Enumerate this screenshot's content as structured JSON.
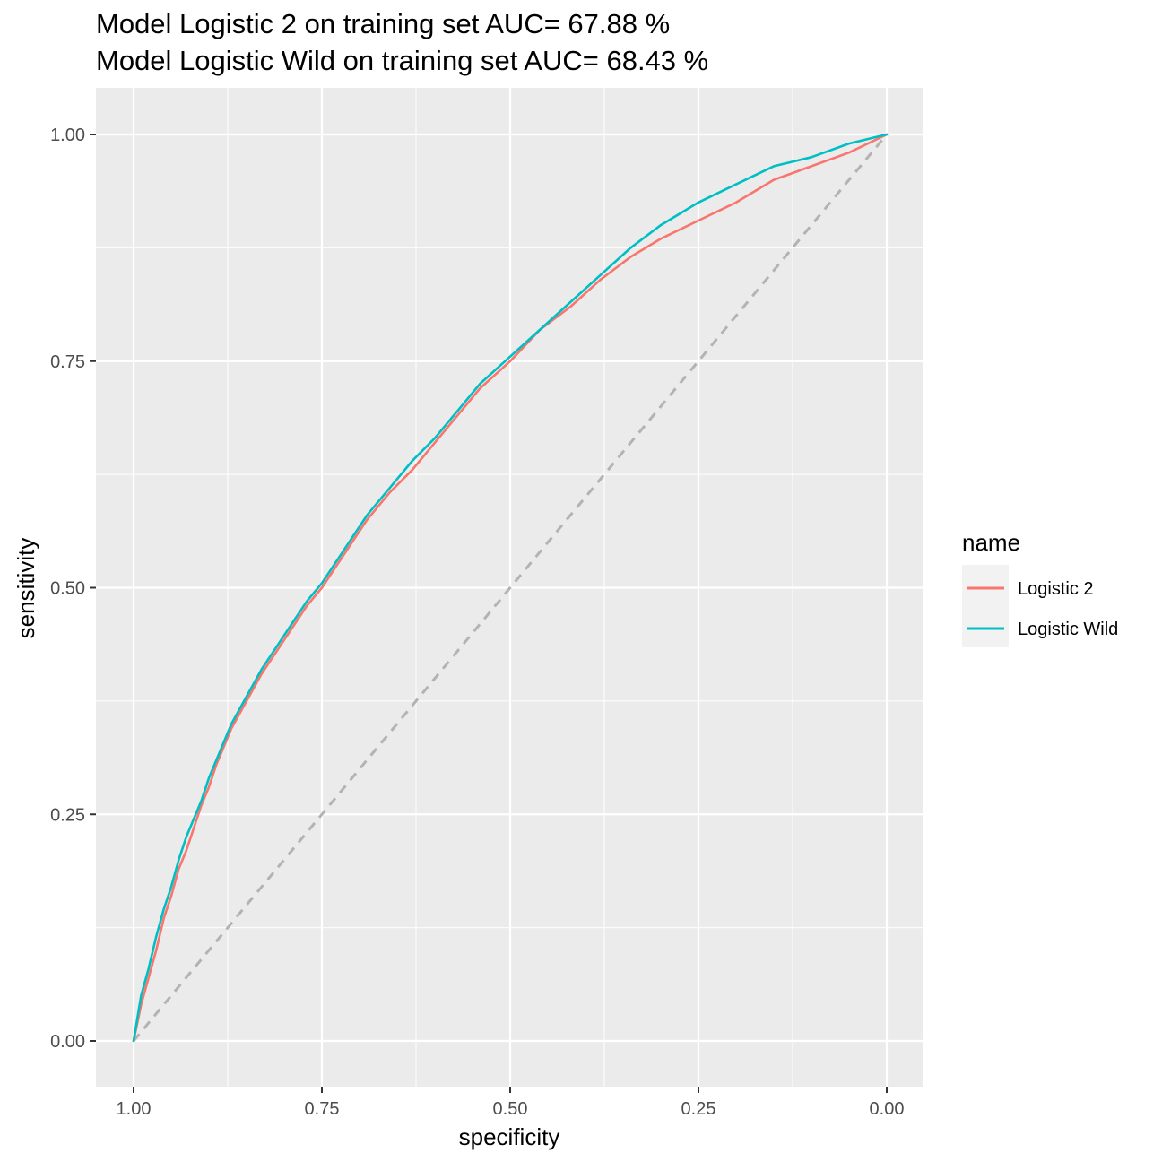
{
  "chart_data": {
    "type": "line",
    "title_lines": [
      "Model Logistic 2 on training set AUC= 67.88 %",
      "Model Logistic Wild on training set AUC= 68.43 %"
    ],
    "xlabel": "specificity",
    "ylabel": "sensitivity",
    "x_reversed": true,
    "xlim": [
      1.0,
      0.0
    ],
    "ylim": [
      0.0,
      1.0
    ],
    "x_ticks": [
      "1.00",
      "0.75",
      "0.50",
      "0.25",
      "0.00"
    ],
    "y_ticks": [
      "0.00",
      "0.25",
      "0.50",
      "0.75",
      "1.00"
    ],
    "grid": true,
    "legend": {
      "title": "name",
      "placement": "right",
      "entries": [
        "Logistic 2",
        "Logistic Wild"
      ]
    },
    "reference_line": {
      "style": "dashed",
      "color": "#b3b3b3",
      "from": [
        1.0,
        0.0
      ],
      "to": [
        0.0,
        1.0
      ]
    },
    "series": [
      {
        "name": "Logistic 2",
        "color": "#F8766D",
        "points": [
          [
            1.0,
            0.0
          ],
          [
            0.99,
            0.04
          ],
          [
            0.98,
            0.07
          ],
          [
            0.97,
            0.1
          ],
          [
            0.96,
            0.135
          ],
          [
            0.95,
            0.16
          ],
          [
            0.94,
            0.19
          ],
          [
            0.93,
            0.21
          ],
          [
            0.92,
            0.235
          ],
          [
            0.91,
            0.26
          ],
          [
            0.9,
            0.28
          ],
          [
            0.89,
            0.305
          ],
          [
            0.88,
            0.325
          ],
          [
            0.87,
            0.345
          ],
          [
            0.85,
            0.375
          ],
          [
            0.83,
            0.405
          ],
          [
            0.81,
            0.43
          ],
          [
            0.79,
            0.455
          ],
          [
            0.77,
            0.48
          ],
          [
            0.75,
            0.5
          ],
          [
            0.73,
            0.525
          ],
          [
            0.71,
            0.55
          ],
          [
            0.69,
            0.575
          ],
          [
            0.66,
            0.605
          ],
          [
            0.63,
            0.63
          ],
          [
            0.6,
            0.66
          ],
          [
            0.57,
            0.69
          ],
          [
            0.54,
            0.72
          ],
          [
            0.5,
            0.75
          ],
          [
            0.46,
            0.785
          ],
          [
            0.42,
            0.81
          ],
          [
            0.38,
            0.84
          ],
          [
            0.34,
            0.865
          ],
          [
            0.3,
            0.885
          ],
          [
            0.25,
            0.905
          ],
          [
            0.2,
            0.925
          ],
          [
            0.15,
            0.95
          ],
          [
            0.1,
            0.965
          ],
          [
            0.05,
            0.98
          ],
          [
            0.0,
            1.0
          ]
        ]
      },
      {
        "name": "Logistic Wild",
        "color": "#00BFC4",
        "points": [
          [
            1.0,
            0.0
          ],
          [
            0.99,
            0.05
          ],
          [
            0.98,
            0.08
          ],
          [
            0.97,
            0.115
          ],
          [
            0.96,
            0.145
          ],
          [
            0.95,
            0.17
          ],
          [
            0.94,
            0.2
          ],
          [
            0.93,
            0.225
          ],
          [
            0.92,
            0.245
          ],
          [
            0.91,
            0.265
          ],
          [
            0.9,
            0.29
          ],
          [
            0.89,
            0.31
          ],
          [
            0.88,
            0.33
          ],
          [
            0.87,
            0.35
          ],
          [
            0.85,
            0.38
          ],
          [
            0.83,
            0.41
          ],
          [
            0.81,
            0.435
          ],
          [
            0.79,
            0.46
          ],
          [
            0.77,
            0.485
          ],
          [
            0.75,
            0.505
          ],
          [
            0.73,
            0.53
          ],
          [
            0.71,
            0.555
          ],
          [
            0.69,
            0.58
          ],
          [
            0.66,
            0.61
          ],
          [
            0.63,
            0.64
          ],
          [
            0.6,
            0.665
          ],
          [
            0.57,
            0.695
          ],
          [
            0.54,
            0.725
          ],
          [
            0.5,
            0.755
          ],
          [
            0.46,
            0.785
          ],
          [
            0.42,
            0.815
          ],
          [
            0.38,
            0.845
          ],
          [
            0.34,
            0.875
          ],
          [
            0.3,
            0.9
          ],
          [
            0.25,
            0.925
          ],
          [
            0.2,
            0.945
          ],
          [
            0.15,
            0.965
          ],
          [
            0.1,
            0.975
          ],
          [
            0.05,
            0.99
          ],
          [
            0.0,
            1.0
          ]
        ]
      }
    ]
  }
}
